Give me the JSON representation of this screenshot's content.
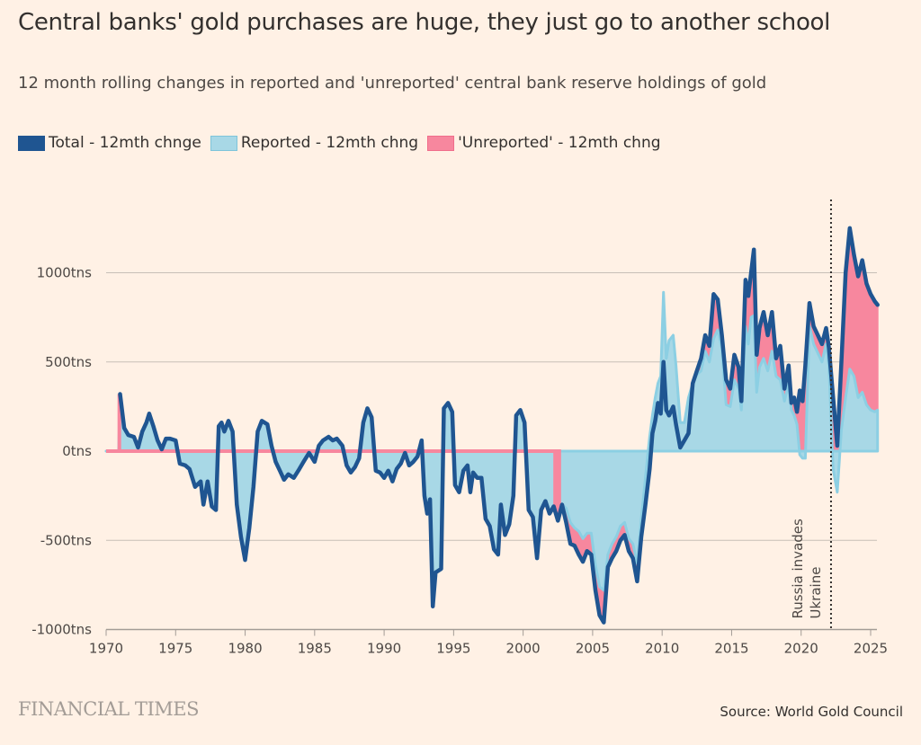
{
  "header": {
    "title": "Central banks' gold purchases are huge, they just go to another school",
    "subtitle": "12 month rolling changes in reported and 'unreported' central bank reserve holdings of gold"
  },
  "footer": {
    "brand": "FINANCIAL TIMES",
    "source": "Source: World Gold Council"
  },
  "colors": {
    "total": "#1f5591",
    "reported": "#a8d8e6",
    "reported_stroke": "#8ccfe3",
    "unreported": "#f7879e",
    "background": "#fff1e5",
    "grid": "#c7bfb7"
  },
  "chart_data": {
    "type": "area",
    "title": "Central banks' gold purchases are huge, they just go to another school",
    "subtitle": "12 month rolling changes in reported and 'unreported' central bank reserve holdings of gold",
    "xlabel": "",
    "ylabel": "",
    "xlim": [
      1970,
      2025.6
    ],
    "ylim": [
      -1000,
      1300
    ],
    "x_ticks": [
      1970,
      1975,
      1980,
      1985,
      1990,
      1995,
      2000,
      2005,
      2010,
      2015,
      2020,
      2025
    ],
    "y_ticks": [
      {
        "value": 1000,
        "label": "1000tns"
      },
      {
        "value": 500,
        "label": "500tns"
      },
      {
        "value": 0,
        "label": "0tns"
      },
      {
        "value": -500,
        "label": "-500tns"
      },
      {
        "value": -1000,
        "label": "-1000tns"
      }
    ],
    "grid": true,
    "legend_position": "top-left",
    "legend": [
      {
        "key": "total",
        "label": "Total - 12mth chnge"
      },
      {
        "key": "reported",
        "label": "Reported - 12mth chng"
      },
      {
        "key": "unreported",
        "label": "'Unreported' - 12mth chng"
      }
    ],
    "annotation": {
      "x": 2022.15,
      "label_line1": "Russia invades",
      "label_line2": "Ukraine"
    },
    "series_columns": [
      "year",
      "total",
      "reported"
    ],
    "points": [
      [
        1970.0,
        0,
        0
      ],
      [
        1970.9,
        0,
        0
      ],
      [
        1971.0,
        320,
        320
      ],
      [
        1971.3,
        130,
        130
      ],
      [
        1971.6,
        90,
        90
      ],
      [
        1972.0,
        80,
        80
      ],
      [
        1972.3,
        20,
        20
      ],
      [
        1972.6,
        110,
        110
      ],
      [
        1972.9,
        160,
        160
      ],
      [
        1973.1,
        210,
        210
      ],
      [
        1973.4,
        140,
        140
      ],
      [
        1973.7,
        60,
        60
      ],
      [
        1974.0,
        10,
        10
      ],
      [
        1974.3,
        70,
        70
      ],
      [
        1974.6,
        70,
        70
      ],
      [
        1975.0,
        60,
        60
      ],
      [
        1975.3,
        -70,
        -70
      ],
      [
        1975.7,
        -80,
        -80
      ],
      [
        1976.0,
        -100,
        -100
      ],
      [
        1976.4,
        -200,
        -200
      ],
      [
        1976.8,
        -170,
        -170
      ],
      [
        1977.0,
        -300,
        -300
      ],
      [
        1977.3,
        -170,
        -170
      ],
      [
        1977.6,
        -310,
        -310
      ],
      [
        1977.9,
        -330,
        -330
      ],
      [
        1978.1,
        140,
        140
      ],
      [
        1978.3,
        160,
        160
      ],
      [
        1978.5,
        110,
        110
      ],
      [
        1978.8,
        170,
        170
      ],
      [
        1979.1,
        110,
        110
      ],
      [
        1979.4,
        -300,
        -300
      ],
      [
        1979.7,
        -480,
        -480
      ],
      [
        1980.0,
        -610,
        -610
      ],
      [
        1980.3,
        -430,
        -430
      ],
      [
        1980.6,
        -200,
        -200
      ],
      [
        1980.9,
        110,
        110
      ],
      [
        1981.2,
        170,
        170
      ],
      [
        1981.6,
        150,
        150
      ],
      [
        1981.9,
        30,
        30
      ],
      [
        1982.2,
        -60,
        -60
      ],
      [
        1982.5,
        -110,
        -110
      ],
      [
        1982.8,
        -160,
        -160
      ],
      [
        1983.1,
        -130,
        -130
      ],
      [
        1983.5,
        -150,
        -150
      ],
      [
        1983.9,
        -100,
        -100
      ],
      [
        1984.2,
        -60,
        -60
      ],
      [
        1984.6,
        -10,
        -10
      ],
      [
        1985.0,
        -60,
        -60
      ],
      [
        1985.3,
        30,
        30
      ],
      [
        1985.6,
        60,
        60
      ],
      [
        1986.0,
        80,
        80
      ],
      [
        1986.3,
        60,
        60
      ],
      [
        1986.6,
        70,
        70
      ],
      [
        1987.0,
        30,
        30
      ],
      [
        1987.3,
        -80,
        -80
      ],
      [
        1987.6,
        -120,
        -120
      ],
      [
        1987.9,
        -90,
        -90
      ],
      [
        1988.2,
        -40,
        -40
      ],
      [
        1988.5,
        160,
        160
      ],
      [
        1988.8,
        240,
        240
      ],
      [
        1989.1,
        190,
        190
      ],
      [
        1989.4,
        -110,
        -110
      ],
      [
        1989.7,
        -120,
        -120
      ],
      [
        1990.0,
        -150,
        -150
      ],
      [
        1990.3,
        -110,
        -110
      ],
      [
        1990.6,
        -170,
        -170
      ],
      [
        1990.9,
        -100,
        -100
      ],
      [
        1991.2,
        -70,
        -70
      ],
      [
        1991.5,
        -10,
        -10
      ],
      [
        1991.8,
        -80,
        -80
      ],
      [
        1992.1,
        -60,
        -60
      ],
      [
        1992.4,
        -30,
        -30
      ],
      [
        1992.7,
        60,
        60
      ],
      [
        1992.9,
        -250,
        -250
      ],
      [
        1993.1,
        -350,
        -350
      ],
      [
        1993.3,
        -270,
        -270
      ],
      [
        1993.5,
        -870,
        -870
      ],
      [
        1993.7,
        -680,
        -680
      ],
      [
        1994.1,
        -660,
        -660
      ],
      [
        1994.3,
        240,
        240
      ],
      [
        1994.6,
        270,
        270
      ],
      [
        1994.9,
        220,
        220
      ],
      [
        1995.1,
        -190,
        -190
      ],
      [
        1995.4,
        -230,
        -230
      ],
      [
        1995.7,
        -110,
        -110
      ],
      [
        1996.0,
        -80,
        -80
      ],
      [
        1996.2,
        -230,
        -230
      ],
      [
        1996.4,
        -120,
        -120
      ],
      [
        1996.7,
        -150,
        -150
      ],
      [
        1997.0,
        -150,
        -150
      ],
      [
        1997.3,
        -380,
        -380
      ],
      [
        1997.6,
        -420,
        -420
      ],
      [
        1997.9,
        -550,
        -550
      ],
      [
        1998.2,
        -580,
        -580
      ],
      [
        1998.4,
        -300,
        -300
      ],
      [
        1998.7,
        -470,
        -470
      ],
      [
        1999.0,
        -410,
        -410
      ],
      [
        1999.3,
        -250,
        -250
      ],
      [
        1999.5,
        200,
        200
      ],
      [
        1999.8,
        230,
        230
      ],
      [
        2000.1,
        160,
        160
      ],
      [
        2000.4,
        -330,
        -330
      ],
      [
        2000.7,
        -370,
        -370
      ],
      [
        2001.0,
        -600,
        -600
      ],
      [
        2001.3,
        -330,
        -330
      ],
      [
        2001.6,
        -280,
        -280
      ],
      [
        2001.9,
        -350,
        -350
      ],
      [
        2002.2,
        -310,
        -310
      ],
      [
        2002.5,
        -390,
        -290
      ],
      [
        2002.8,
        -300,
        -300
      ],
      [
        2003.1,
        -400,
        -320
      ],
      [
        2003.4,
        -520,
        -400
      ],
      [
        2003.7,
        -530,
        -430
      ],
      [
        2004.0,
        -580,
        -450
      ],
      [
        2004.3,
        -620,
        -490
      ],
      [
        2004.6,
        -560,
        -460
      ],
      [
        2004.9,
        -580,
        -460
      ],
      [
        2005.2,
        -780,
        -640
      ],
      [
        2005.5,
        -920,
        -760
      ],
      [
        2005.8,
        -960,
        -780
      ],
      [
        2006.1,
        -650,
        -580
      ],
      [
        2006.4,
        -600,
        -520
      ],
      [
        2006.7,
        -560,
        -480
      ],
      [
        2007.0,
        -500,
        -420
      ],
      [
        2007.3,
        -470,
        -400
      ],
      [
        2007.6,
        -560,
        -490
      ],
      [
        2007.9,
        -600,
        -520
      ],
      [
        2008.2,
        -730,
        -630
      ],
      [
        2008.5,
        -480,
        -380
      ],
      [
        2008.8,
        -300,
        -150
      ],
      [
        2009.1,
        -100,
        80
      ],
      [
        2009.3,
        100,
        200
      ],
      [
        2009.5,
        170,
        300
      ],
      [
        2009.7,
        270,
        380
      ],
      [
        2009.9,
        210,
        420
      ],
      [
        2010.1,
        500,
        890
      ],
      [
        2010.3,
        230,
        520
      ],
      [
        2010.5,
        200,
        620
      ],
      [
        2010.8,
        250,
        650
      ],
      [
        2011.0,
        150,
        480
      ],
      [
        2011.3,
        20,
        160
      ],
      [
        2011.6,
        60,
        160
      ],
      [
        2011.9,
        100,
        300
      ],
      [
        2012.2,
        380,
        380
      ],
      [
        2012.5,
        450,
        430
      ],
      [
        2012.8,
        520,
        450
      ],
      [
        2013.1,
        650,
        560
      ],
      [
        2013.4,
        590,
        500
      ],
      [
        2013.7,
        880,
        630
      ],
      [
        2014.0,
        850,
        680
      ],
      [
        2014.3,
        650,
        580
      ],
      [
        2014.6,
        400,
        260
      ],
      [
        2014.9,
        350,
        250
      ],
      [
        2015.2,
        540,
        400
      ],
      [
        2015.5,
        470,
        350
      ],
      [
        2015.7,
        280,
        230
      ],
      [
        2016.0,
        960,
        700
      ],
      [
        2016.2,
        870,
        600
      ],
      [
        2016.4,
        1000,
        750
      ],
      [
        2016.6,
        1130,
        760
      ],
      [
        2016.8,
        540,
        330
      ],
      [
        2017.0,
        690,
        470
      ],
      [
        2017.3,
        780,
        520
      ],
      [
        2017.6,
        650,
        450
      ],
      [
        2017.9,
        780,
        560
      ],
      [
        2018.2,
        520,
        420
      ],
      [
        2018.5,
        590,
        400
      ],
      [
        2018.8,
        350,
        280
      ],
      [
        2019.1,
        480,
        380
      ],
      [
        2019.3,
        270,
        230
      ],
      [
        2019.5,
        300,
        200
      ],
      [
        2019.7,
        220,
        150
      ],
      [
        2019.9,
        340,
        -20
      ],
      [
        2020.1,
        280,
        -40
      ],
      [
        2020.3,
        480,
        -40
      ],
      [
        2020.6,
        830,
        700
      ],
      [
        2020.9,
        700,
        600
      ],
      [
        2021.2,
        650,
        550
      ],
      [
        2021.5,
        600,
        500
      ],
      [
        2021.8,
        690,
        600
      ],
      [
        2022.0,
        580,
        480
      ],
      [
        2022.3,
        300,
        -100
      ],
      [
        2022.6,
        30,
        -230
      ],
      [
        2022.9,
        500,
        120
      ],
      [
        2023.2,
        1000,
        300
      ],
      [
        2023.5,
        1250,
        460
      ],
      [
        2023.8,
        1100,
        420
      ],
      [
        2024.1,
        980,
        300
      ],
      [
        2024.4,
        1070,
        330
      ],
      [
        2024.7,
        940,
        260
      ],
      [
        2025.0,
        880,
        230
      ],
      [
        2025.3,
        840,
        220
      ],
      [
        2025.5,
        820,
        230
      ]
    ]
  }
}
